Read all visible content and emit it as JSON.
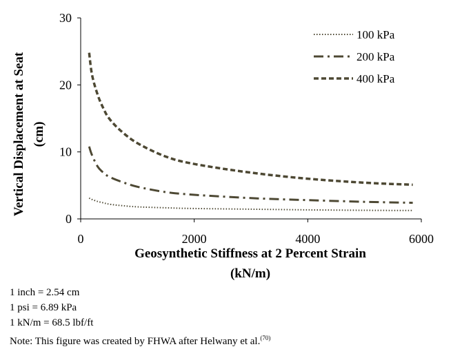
{
  "chart_data": {
    "type": "line",
    "title": "",
    "xlabel_line1": "Geosynthetic Stiffness at 2 Percent Strain",
    "xlabel_line2": "(kN/m)",
    "ylabel_line1": "Vertical Displacement at Seat",
    "ylabel_line2": "(cm)",
    "xlim": [
      0,
      6000
    ],
    "ylim": [
      0,
      30
    ],
    "xticks": [
      0,
      2000,
      4000,
      6000
    ],
    "yticks": [
      0,
      10,
      20,
      30
    ],
    "grid": false,
    "legend_position": "top-right",
    "x": [
      150,
      200,
      300,
      400,
      500,
      700,
      1000,
      1500,
      2000,
      3000,
      4000,
      5000,
      5850
    ],
    "series": [
      {
        "name": "100 kPa",
        "dash": "dotted",
        "values": [
          3.1,
          2.9,
          2.6,
          2.4,
          2.2,
          2.0,
          1.8,
          1.65,
          1.55,
          1.45,
          1.35,
          1.28,
          1.25
        ]
      },
      {
        "name": "200 kPa",
        "dash": "dash-dot",
        "values": [
          10.8,
          9.5,
          7.8,
          6.9,
          6.3,
          5.6,
          4.8,
          4.0,
          3.6,
          3.1,
          2.8,
          2.55,
          2.4
        ]
      },
      {
        "name": "400 kPa",
        "dash": "dashed",
        "values": [
          24.8,
          21.5,
          18.5,
          16.5,
          15.0,
          13.2,
          11.3,
          9.3,
          8.2,
          6.9,
          6.0,
          5.4,
          5.1
        ]
      }
    ],
    "line_color": "#4d4833"
  },
  "notes": {
    "line1": "1 inch = 2.54 cm",
    "line2": "1 psi = 6.89 kPa",
    "line3": "1 kN/m = 68.5 lbf/ft",
    "line4_text": "Note: This figure was created by FHWA after Helwany et al.",
    "line4_ref": "(70)"
  }
}
